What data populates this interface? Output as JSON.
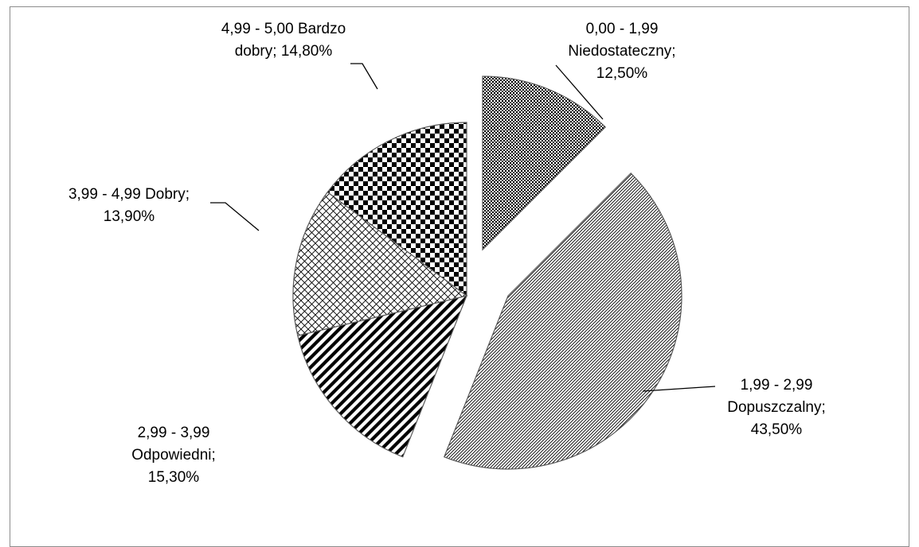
{
  "chart_data": {
    "type": "pie",
    "exploded": true,
    "slices": [
      {
        "label": "0,00 - 1,99 Niedostateczny",
        "value": 12.5,
        "display": "12,50%",
        "label_lines": [
          "0,00 - 1,99",
          "Niedostateczny;",
          "12,50%"
        ],
        "pattern": "dense-dots"
      },
      {
        "label": "1,99 - 2,99 Dopuszczalny",
        "value": 43.5,
        "display": "43,50%",
        "label_lines": [
          "1,99 - 2,99",
          "Dopuszczalny;",
          "43,50%"
        ],
        "pattern": "fine-diagonal"
      },
      {
        "label": "2,99 - 3,99 Odpowiedni",
        "value": 15.3,
        "display": "15,30%",
        "label_lines": [
          "2,99 - 3,99",
          "Odpowiedni;",
          "15,30%"
        ],
        "pattern": "wide-diagonal"
      },
      {
        "label": "3,99 - 4,99 Dobry",
        "value": 13.9,
        "display": "13,90%",
        "label_lines": [
          "3,99 - 4,99 Dobry;",
          "13,90%"
        ],
        "pattern": "lattice"
      },
      {
        "label": "4,99 - 5,00 Bardzo dobry",
        "value": 14.8,
        "display": "14,80%",
        "label_lines": [
          "4,99 - 5,00 Bardzo",
          "dobry; 14,80%"
        ],
        "pattern": "checkerboard"
      }
    ],
    "colors": {
      "stroke": "#595959",
      "ink": "#000000",
      "frame": "#8c8c8c"
    }
  }
}
